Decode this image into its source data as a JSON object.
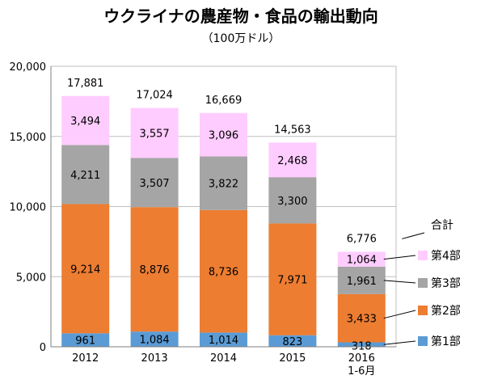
{
  "chart_data": {
    "type": "bar",
    "stacked": true,
    "title": "ウクライナの農産物・食品の輸出動向",
    "subtitle": "（100万ドル）",
    "categories": [
      "2012",
      "2013",
      "2014",
      "2015",
      "2016\n1-6月"
    ],
    "series": [
      {
        "name": "第1部",
        "color": "#5b9bd5",
        "values": [
          961,
          1084,
          1014,
          823,
          318
        ]
      },
      {
        "name": "第2部",
        "color": "#ed7d31",
        "values": [
          9214,
          8876,
          8736,
          7971,
          3433
        ]
      },
      {
        "name": "第3部",
        "color": "#a5a5a5",
        "values": [
          4211,
          3507,
          3822,
          3300,
          1961
        ]
      },
      {
        "name": "第4部",
        "color": "#ffccff",
        "values": [
          3494,
          3557,
          3096,
          2468,
          1064
        ]
      }
    ],
    "totals": [
      17881,
      17024,
      16669,
      14563,
      6776
    ],
    "total_label": "合計",
    "ylim": [
      0,
      20000
    ],
    "yticks": [
      0,
      5000,
      10000,
      15000,
      20000
    ],
    "grid": true,
    "legend": "right"
  }
}
